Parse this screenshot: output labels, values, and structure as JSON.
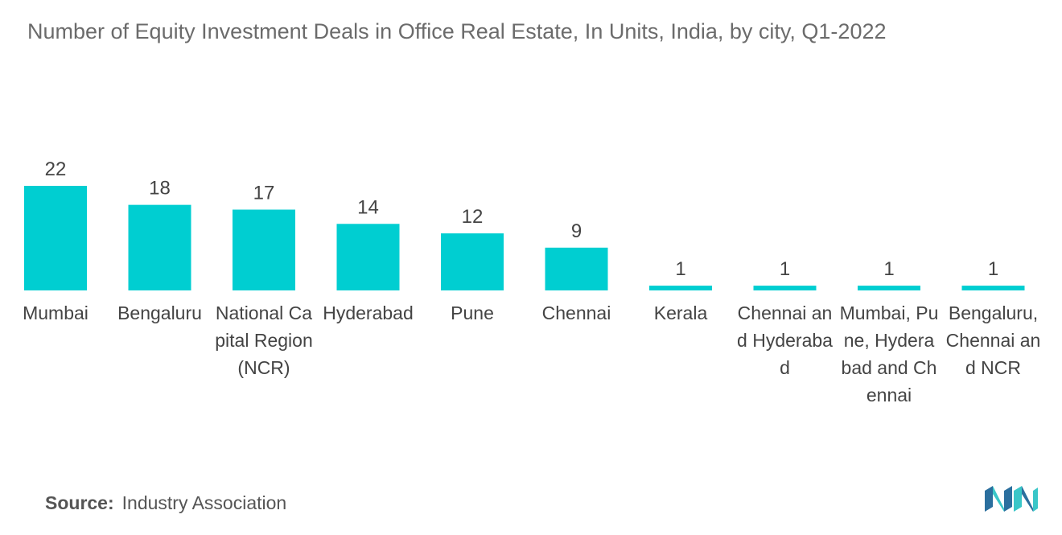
{
  "chart_data": {
    "type": "bar",
    "title": "Number of Equity Investment Deals in Office Real Estate, In Units, India, by city, Q1-2022",
    "categories": [
      "Mumbai",
      "Bengaluru",
      "National Capital Region (NCR)",
      "Hyderabad",
      "Pune",
      "Chennai",
      "Kerala",
      "Chennai and Hyderabad",
      "Mumbai, Pune, Hyderabad and Chennai",
      "Bengaluru, Chennai and NCR"
    ],
    "values": [
      22,
      18,
      17,
      14,
      12,
      9,
      1,
      1,
      1,
      1
    ],
    "xlabel": "",
    "ylabel": "",
    "ylim": [
      0,
      22
    ],
    "grid": false,
    "bar_color": "#00CED1"
  },
  "source": {
    "label": "Source:",
    "text": "Industry Association"
  },
  "logo": {
    "icon": "mordor-intelligence-logo-icon",
    "colors": [
      "#2b6f9e",
      "#39c6c8"
    ]
  }
}
